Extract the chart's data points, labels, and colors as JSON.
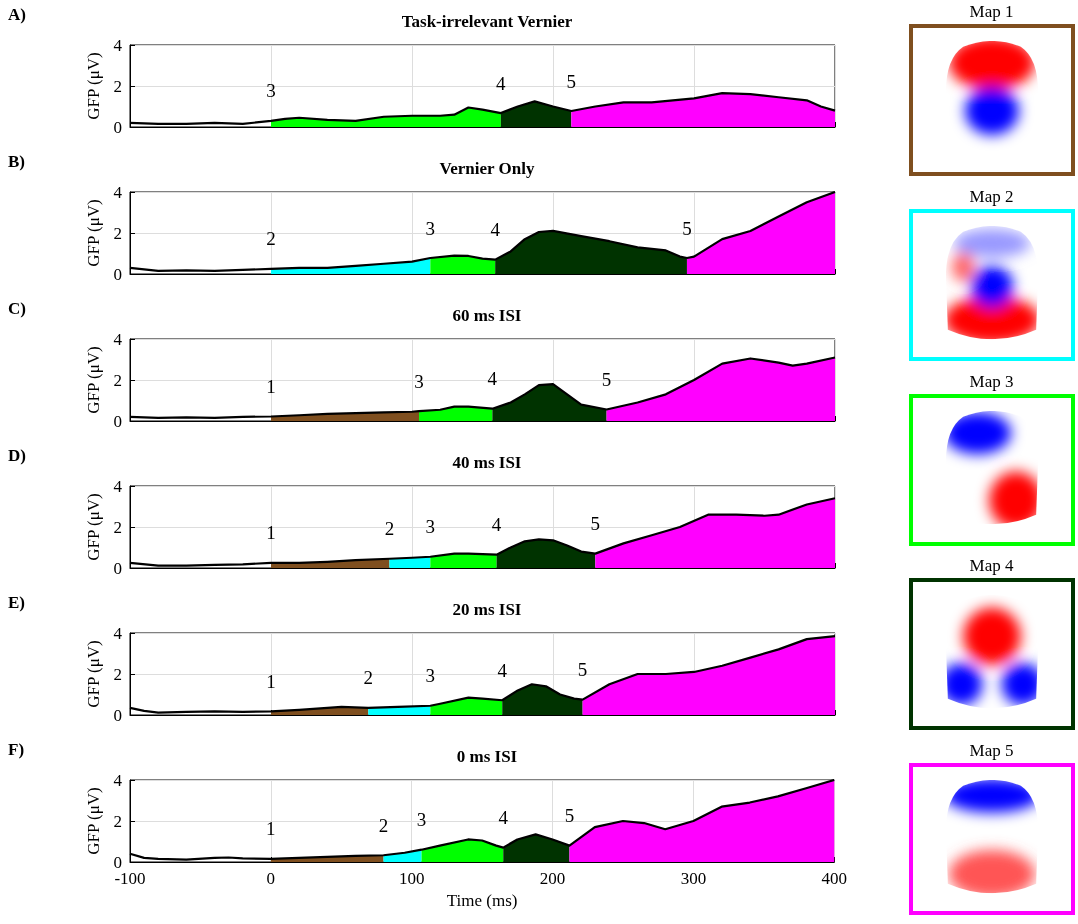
{
  "chart_data": [
    {
      "type": "area",
      "title": "Task-irrelevant Vernier",
      "ylabel": "GFP (μV)",
      "xlim": [
        -100,
        400
      ],
      "ylim": [
        0,
        4
      ],
      "xticks": [
        -100,
        0,
        100,
        200,
        300,
        400
      ],
      "yticks": [
        0,
        2,
        4
      ],
      "grid": true,
      "tick_labels": "y",
      "annotations": [
        "A)",
        {
          "text": "3",
          "x": 0,
          "y": 0.3
        },
        {
          "text": "4",
          "x": 163,
          "y": 0.68
        },
        {
          "text": "5",
          "x": 213,
          "y": 0.78
        }
      ],
      "series": [
        {
          "type": "area",
          "color": "#00ff00",
          "x": [
            0,
            10,
            20,
            40,
            60,
            80,
            100,
            120,
            130,
            140,
            150,
            163
          ],
          "values": [
            0.3,
            0.4,
            0.45,
            0.35,
            0.3,
            0.5,
            0.55,
            0.55,
            0.6,
            0.95,
            0.85,
            0.68
          ]
        },
        {
          "type": "area",
          "color": "#003300",
          "x": [
            163,
            175,
            187,
            200,
            213
          ],
          "values": [
            0.68,
            1.0,
            1.25,
            1.0,
            0.78
          ]
        },
        {
          "type": "area",
          "color": "#ff00ff",
          "x": [
            213,
            230,
            250,
            270,
            300,
            320,
            340,
            360,
            380,
            390,
            400
          ],
          "values": [
            0.78,
            1.0,
            1.2,
            1.2,
            1.4,
            1.65,
            1.6,
            1.45,
            1.3,
            1.0,
            0.8
          ]
        },
        {
          "type": "line",
          "color": "#000000",
          "x": [
            -100,
            -80,
            -60,
            -40,
            -20,
            0,
            10,
            20,
            40,
            60,
            80,
            100,
            120,
            130,
            140,
            150,
            163,
            175,
            187,
            200,
            213,
            230,
            250,
            270,
            300,
            320,
            340,
            360,
            380,
            390,
            400
          ],
          "values": [
            0.2,
            0.15,
            0.15,
            0.2,
            0.15,
            0.3,
            0.4,
            0.45,
            0.35,
            0.3,
            0.5,
            0.55,
            0.55,
            0.6,
            0.95,
            0.85,
            0.68,
            1.0,
            1.25,
            1.0,
            0.78,
            1.0,
            1.2,
            1.2,
            1.4,
            1.65,
            1.6,
            1.45,
            1.3,
            1.0,
            0.8
          ]
        }
      ]
    },
    {
      "type": "area",
      "title": "Vernier Only",
      "ylabel": "GFP (μV)",
      "xlim": [
        -100,
        400
      ],
      "ylim": [
        0,
        4
      ],
      "xticks": [
        -100,
        0,
        100,
        200,
        300,
        400
      ],
      "yticks": [
        0,
        2,
        4
      ],
      "grid": true,
      "tick_labels": "y",
      "annotations": [
        "B)",
        {
          "text": "2",
          "x": 0,
          "y": 0.25
        },
        {
          "text": "3",
          "x": 113,
          "y": 0.78
        },
        {
          "text": "4",
          "x": 159,
          "y": 0.7
        },
        {
          "text": "5",
          "x": 295,
          "y": 0.78
        }
      ],
      "series": [
        {
          "type": "area",
          "color": "#00ffff",
          "x": [
            0,
            20,
            40,
            60,
            80,
            100,
            113
          ],
          "values": [
            0.25,
            0.3,
            0.3,
            0.4,
            0.5,
            0.6,
            0.78
          ]
        },
        {
          "type": "area",
          "color": "#00ff00",
          "x": [
            113,
            130,
            140,
            150,
            159
          ],
          "values": [
            0.78,
            0.9,
            0.88,
            0.75,
            0.7
          ]
        },
        {
          "type": "area",
          "color": "#003300",
          "x": [
            159,
            170,
            180,
            190,
            200,
            220,
            240,
            260,
            280,
            290,
            295
          ],
          "values": [
            0.7,
            1.1,
            1.7,
            2.05,
            2.1,
            1.85,
            1.6,
            1.3,
            1.15,
            0.85,
            0.78
          ]
        },
        {
          "type": "area",
          "color": "#ff00ff",
          "x": [
            295,
            300,
            320,
            340,
            360,
            380,
            400
          ],
          "values": [
            0.78,
            0.85,
            1.7,
            2.1,
            2.8,
            3.5,
            4.0
          ]
        },
        {
          "type": "line",
          "color": "#000000",
          "x": [
            -100,
            -80,
            -60,
            -40,
            -20,
            0,
            20,
            40,
            60,
            80,
            100,
            113,
            130,
            140,
            150,
            159,
            170,
            180,
            190,
            200,
            220,
            240,
            260,
            280,
            290,
            295,
            300,
            320,
            340,
            360,
            380,
            400
          ],
          "values": [
            0.3,
            0.15,
            0.18,
            0.15,
            0.2,
            0.25,
            0.3,
            0.3,
            0.4,
            0.5,
            0.6,
            0.78,
            0.9,
            0.88,
            0.75,
            0.7,
            1.1,
            1.7,
            2.05,
            2.1,
            1.85,
            1.6,
            1.3,
            1.15,
            0.85,
            0.78,
            0.85,
            1.7,
            2.1,
            2.8,
            3.5,
            4.0
          ]
        }
      ]
    },
    {
      "type": "area",
      "title": "60 ms ISI",
      "ylabel": "GFP (μV)",
      "xlim": [
        -100,
        400
      ],
      "ylim": [
        0,
        4
      ],
      "xticks": [
        -100,
        0,
        100,
        200,
        300,
        400
      ],
      "yticks": [
        0,
        2,
        4
      ],
      "grid": true,
      "tick_labels": "y",
      "annotations": [
        "C)",
        {
          "text": "1",
          "x": 0,
          "y": 0.22
        },
        {
          "text": "3",
          "x": 105,
          "y": 0.48
        },
        {
          "text": "4",
          "x": 157,
          "y": 0.6
        },
        {
          "text": "5",
          "x": 238,
          "y": 0.56
        }
      ],
      "series": [
        {
          "type": "area",
          "color": "#7f4f1f",
          "x": [
            0,
            20,
            40,
            60,
            80,
            100,
            105
          ],
          "values": [
            0.22,
            0.28,
            0.35,
            0.38,
            0.42,
            0.45,
            0.48
          ]
        },
        {
          "type": "area",
          "color": "#00ff00",
          "x": [
            105,
            120,
            130,
            140,
            157
          ],
          "values": [
            0.48,
            0.55,
            0.7,
            0.7,
            0.6
          ]
        },
        {
          "type": "area",
          "color": "#003300",
          "x": [
            157,
            170,
            180,
            190,
            200,
            210,
            220,
            238
          ],
          "values": [
            0.6,
            0.9,
            1.3,
            1.75,
            1.8,
            1.3,
            0.8,
            0.56
          ]
        },
        {
          "type": "area",
          "color": "#ff00ff",
          "x": [
            238,
            260,
            280,
            300,
            320,
            340,
            360,
            370,
            380,
            400
          ],
          "values": [
            0.56,
            0.9,
            1.3,
            2.0,
            2.8,
            3.05,
            2.85,
            2.7,
            2.8,
            3.1
          ]
        },
        {
          "type": "line",
          "color": "#000000",
          "x": [
            -100,
            -80,
            -60,
            -40,
            -20,
            0,
            20,
            40,
            60,
            80,
            100,
            105,
            120,
            130,
            140,
            157,
            170,
            180,
            190,
            200,
            210,
            220,
            238,
            260,
            280,
            300,
            320,
            340,
            360,
            370,
            380,
            400
          ],
          "values": [
            0.2,
            0.15,
            0.18,
            0.15,
            0.2,
            0.22,
            0.28,
            0.35,
            0.38,
            0.42,
            0.45,
            0.48,
            0.55,
            0.7,
            0.7,
            0.6,
            0.9,
            1.3,
            1.75,
            1.8,
            1.3,
            0.8,
            0.56,
            0.9,
            1.3,
            2.0,
            2.8,
            3.05,
            2.85,
            2.7,
            2.8,
            3.1
          ]
        }
      ]
    },
    {
      "type": "area",
      "title": "40 ms ISI",
      "ylabel": "GFP (μV)",
      "xlim": [
        -100,
        400
      ],
      "ylim": [
        0,
        4
      ],
      "xticks": [
        -100,
        0,
        100,
        200,
        300,
        400
      ],
      "yticks": [
        0,
        2,
        4
      ],
      "grid": true,
      "tick_labels": "y",
      "annotations": [
        "D)",
        {
          "text": "1",
          "x": 0,
          "y": 0.25
        },
        {
          "text": "2",
          "x": 84,
          "y": 0.45
        },
        {
          "text": "3",
          "x": 113,
          "y": 0.55
        },
        {
          "text": "4",
          "x": 160,
          "y": 0.65
        },
        {
          "text": "5",
          "x": 230,
          "y": 0.7
        }
      ],
      "series": [
        {
          "type": "area",
          "color": "#7f4f1f",
          "x": [
            0,
            20,
            40,
            60,
            84
          ],
          "values": [
            0.25,
            0.25,
            0.3,
            0.38,
            0.45
          ]
        },
        {
          "type": "area",
          "color": "#00ffff",
          "x": [
            84,
            100,
            113
          ],
          "values": [
            0.45,
            0.5,
            0.55
          ]
        },
        {
          "type": "area",
          "color": "#00ff00",
          "x": [
            113,
            130,
            140,
            160
          ],
          "values": [
            0.55,
            0.7,
            0.7,
            0.65
          ]
        },
        {
          "type": "area",
          "color": "#003300",
          "x": [
            160,
            170,
            180,
            190,
            200,
            210,
            220,
            230
          ],
          "values": [
            0.65,
            1.0,
            1.3,
            1.4,
            1.35,
            1.1,
            0.8,
            0.7
          ]
        },
        {
          "type": "area",
          "color": "#ff00ff",
          "x": [
            230,
            250,
            270,
            290,
            310,
            330,
            350,
            360,
            380,
            400
          ],
          "values": [
            0.7,
            1.2,
            1.6,
            2.0,
            2.6,
            2.6,
            2.55,
            2.6,
            3.1,
            3.4
          ]
        },
        {
          "type": "line",
          "color": "#000000",
          "x": [
            -100,
            -80,
            -60,
            -40,
            -20,
            0,
            20,
            40,
            60,
            84,
            100,
            113,
            130,
            140,
            160,
            170,
            180,
            190,
            200,
            210,
            220,
            230,
            250,
            270,
            290,
            310,
            330,
            350,
            360,
            380,
            400
          ],
          "values": [
            0.25,
            0.12,
            0.12,
            0.15,
            0.18,
            0.25,
            0.25,
            0.3,
            0.38,
            0.45,
            0.5,
            0.55,
            0.7,
            0.7,
            0.65,
            1.0,
            1.3,
            1.4,
            1.35,
            1.1,
            0.8,
            0.7,
            1.2,
            1.6,
            2.0,
            2.6,
            2.6,
            2.55,
            2.6,
            3.1,
            3.4
          ]
        }
      ]
    },
    {
      "type": "area",
      "title": "20 ms ISI",
      "ylabel": "GFP (μV)",
      "xlim": [
        -100,
        400
      ],
      "ylim": [
        0,
        4
      ],
      "xticks": [
        -100,
        0,
        100,
        200,
        300,
        400
      ],
      "yticks": [
        0,
        2,
        4
      ],
      "grid": true,
      "tick_labels": "y",
      "annotations": [
        "E)",
        {
          "text": "1",
          "x": 0,
          "y": 0.18
        },
        {
          "text": "2",
          "x": 69,
          "y": 0.35
        },
        {
          "text": "3",
          "x": 113,
          "y": 0.45
        },
        {
          "text": "4",
          "x": 164,
          "y": 0.72
        },
        {
          "text": "5",
          "x": 221,
          "y": 0.75
        }
      ],
      "series": [
        {
          "type": "area",
          "color": "#7f4f1f",
          "x": [
            0,
            20,
            40,
            50,
            69
          ],
          "values": [
            0.18,
            0.25,
            0.35,
            0.4,
            0.35
          ]
        },
        {
          "type": "area",
          "color": "#00ffff",
          "x": [
            69,
            90,
            113
          ],
          "values": [
            0.35,
            0.4,
            0.45
          ]
        },
        {
          "type": "area",
          "color": "#00ff00",
          "x": [
            113,
            120,
            140,
            150,
            164
          ],
          "values": [
            0.45,
            0.55,
            0.85,
            0.8,
            0.72
          ]
        },
        {
          "type": "area",
          "color": "#003300",
          "x": [
            164,
            175,
            185,
            195,
            205,
            215,
            221
          ],
          "values": [
            0.72,
            1.2,
            1.5,
            1.4,
            1.0,
            0.8,
            0.75
          ]
        },
        {
          "type": "area",
          "color": "#ff00ff",
          "x": [
            221,
            240,
            260,
            280,
            300,
            320,
            340,
            360,
            380,
            400
          ],
          "values": [
            0.75,
            1.5,
            2.0,
            2.0,
            2.1,
            2.4,
            2.8,
            3.2,
            3.7,
            3.85
          ]
        },
        {
          "type": "line",
          "color": "#000000",
          "x": [
            -100,
            -90,
            -80,
            -60,
            -40,
            -20,
            0,
            20,
            40,
            50,
            69,
            90,
            113,
            120,
            140,
            150,
            164,
            175,
            185,
            195,
            205,
            215,
            221,
            240,
            260,
            280,
            300,
            320,
            340,
            360,
            380,
            400
          ],
          "values": [
            0.35,
            0.2,
            0.12,
            0.15,
            0.18,
            0.15,
            0.18,
            0.25,
            0.35,
            0.4,
            0.35,
            0.4,
            0.45,
            0.55,
            0.85,
            0.8,
            0.72,
            1.2,
            1.5,
            1.4,
            1.0,
            0.8,
            0.75,
            1.5,
            2.0,
            2.0,
            2.1,
            2.4,
            2.8,
            3.2,
            3.7,
            3.85
          ]
        }
      ]
    },
    {
      "type": "area",
      "title": "0 ms ISI",
      "xlabel": "Time (ms)",
      "ylabel": "GFP (μV)",
      "xlim": [
        -100,
        400
      ],
      "ylim": [
        0,
        4
      ],
      "xticks": [
        -100,
        0,
        100,
        200,
        300,
        400
      ],
      "yticks": [
        0,
        2,
        4
      ],
      "grid": true,
      "annotations": [
        "F)",
        {
          "text": "1",
          "x": 0,
          "y": 0.15
        },
        {
          "text": "2",
          "x": 80,
          "y": 0.33
        },
        {
          "text": "3",
          "x": 107,
          "y": 0.6
        },
        {
          "text": "4",
          "x": 165,
          "y": 0.7
        },
        {
          "text": "5",
          "x": 212,
          "y": 0.8
        }
      ],
      "series": [
        {
          "type": "area",
          "color": "#7f4f1f",
          "x": [
            0,
            20,
            40,
            60,
            80
          ],
          "values": [
            0.15,
            0.2,
            0.25,
            0.3,
            0.33
          ]
        },
        {
          "type": "area",
          "color": "#00ffff",
          "x": [
            80,
            95,
            107
          ],
          "values": [
            0.33,
            0.45,
            0.6
          ]
        },
        {
          "type": "area",
          "color": "#00ff00",
          "x": [
            107,
            120,
            140,
            150,
            160,
            165
          ],
          "values": [
            0.6,
            0.8,
            1.1,
            1.05,
            0.8,
            0.7
          ]
        },
        {
          "type": "area",
          "color": "#003300",
          "x": [
            165,
            175,
            188,
            200,
            212
          ],
          "values": [
            0.7,
            1.1,
            1.35,
            1.1,
            0.8
          ]
        },
        {
          "type": "area",
          "color": "#ff00ff",
          "x": [
            212,
            230,
            250,
            265,
            280,
            300,
            320,
            340,
            360,
            380,
            400
          ],
          "values": [
            0.8,
            1.7,
            2.0,
            1.9,
            1.6,
            2.0,
            2.7,
            2.9,
            3.2,
            3.6,
            4.0
          ]
        },
        {
          "type": "line",
          "color": "#000000",
          "x": [
            -100,
            -90,
            -80,
            -60,
            -40,
            -30,
            -20,
            0,
            20,
            40,
            60,
            80,
            95,
            107,
            120,
            140,
            150,
            160,
            165,
            175,
            188,
            200,
            212,
            230,
            250,
            265,
            280,
            300,
            320,
            340,
            360,
            380,
            400
          ],
          "values": [
            0.4,
            0.2,
            0.15,
            0.12,
            0.2,
            0.22,
            0.18,
            0.15,
            0.2,
            0.25,
            0.3,
            0.33,
            0.45,
            0.6,
            0.8,
            1.1,
            1.05,
            0.8,
            0.7,
            1.1,
            1.35,
            1.1,
            0.8,
            1.7,
            2.0,
            1.9,
            1.6,
            2.0,
            2.7,
            2.9,
            3.2,
            3.6,
            4.0
          ]
        }
      ]
    },
    {
      "type": "other",
      "categories": [
        "Map 1",
        "Map 2",
        "Map 3",
        "Map 4",
        "Map 5"
      ],
      "colors": [
        "#7f4f1f",
        "#00ffff",
        "#00ff00",
        "#003300",
        "#ff00ff"
      ]
    }
  ]
}
